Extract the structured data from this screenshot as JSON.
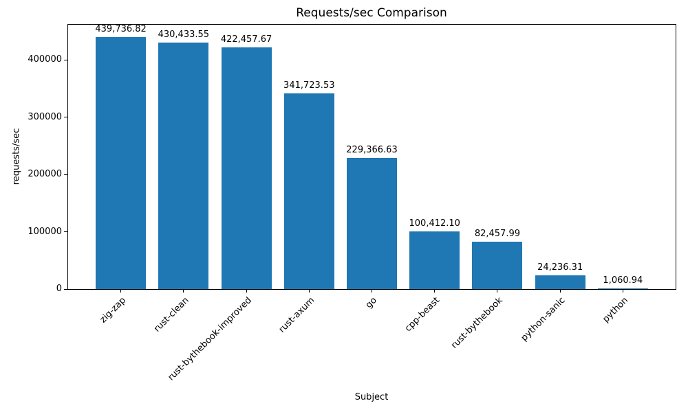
{
  "chart_data": {
    "type": "bar",
    "title": "Requests/sec Comparison",
    "xlabel": "Subject",
    "ylabel": "requests/sec",
    "categories": [
      "zig-zap",
      "rust-clean",
      "rust-bythebook-improved",
      "rust-axum",
      "go",
      "cpp-beast",
      "rust-bythebook",
      "python-sanic",
      "python"
    ],
    "values": [
      439736.82,
      430433.55,
      422457.67,
      341723.53,
      229366.63,
      100412.1,
      82457.99,
      24236.31,
      1060.94
    ],
    "value_labels": [
      "439,736.82",
      "430,433.55",
      "422,457.67",
      "341,723.53",
      "229,366.63",
      "100,412.10",
      "82,457.99",
      "24,236.31",
      "1,060.94"
    ],
    "ylim": [
      0,
      461724
    ],
    "yticks": [
      0,
      100000,
      200000,
      300000,
      400000
    ],
    "ytick_labels": [
      "0",
      "100000",
      "200000",
      "300000",
      "400000"
    ],
    "bar_color": "#1f77b4",
    "grid": false,
    "legend_position": "none"
  }
}
